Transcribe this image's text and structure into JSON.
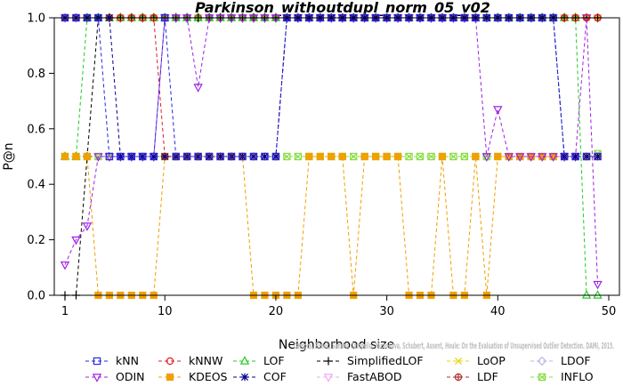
{
  "chart_data": {
    "type": "line",
    "title": "Parkinson_withoutdupl_norm_05_v02",
    "xlabel": "Neighborhood size",
    "ylabel": "P@n",
    "xlim": [
      1,
      50
    ],
    "ylim": [
      0,
      1
    ],
    "xticks": [
      1,
      10,
      20,
      30,
      40,
      50
    ],
    "xtick_labels": [
      "1",
      "10",
      "20",
      "30",
      "40",
      "50"
    ],
    "yticks": [
      0,
      0.2,
      0.4,
      0.6,
      0.8,
      1.0
    ],
    "ytick_labels": [
      "0.0",
      "0.2",
      "0.4",
      "0.6",
      "0.8",
      "1.0"
    ],
    "grid": false,
    "legend_position": "bottom",
    "credit": "Campos, Zimek, Sander, Campello, Micenkova, Schubert, Assent, Houle: On the Evaluation of Unsupervised Outlier Detection. DAMI, 2015.",
    "x": [
      1,
      2,
      3,
      4,
      5,
      6,
      7,
      8,
      9,
      10,
      11,
      12,
      13,
      14,
      15,
      16,
      17,
      18,
      19,
      20,
      21,
      22,
      23,
      24,
      25,
      26,
      27,
      28,
      29,
      30,
      31,
      32,
      33,
      34,
      35,
      36,
      37,
      38,
      39,
      40,
      41,
      42,
      43,
      44,
      45,
      46,
      47,
      48,
      49
    ],
    "series": [
      {
        "name": "kNN",
        "color": "#2626e6",
        "marker": "square",
        "values": [
          1,
          1,
          1,
          1,
          0.5,
          0.5,
          0.5,
          0.5,
          0.5,
          1,
          0.5,
          0.5,
          0.5,
          0.5,
          0.5,
          0.5,
          0.5,
          0.5,
          0.5,
          0.5,
          1,
          1,
          1,
          1,
          1,
          1,
          1,
          1,
          1,
          1,
          1,
          1,
          1,
          1,
          1,
          1,
          1,
          1,
          1,
          1,
          1,
          1,
          1,
          1,
          1,
          0.5,
          0.5,
          0.5,
          0.5
        ]
      },
      {
        "name": "kNNW",
        "color": "#e02020",
        "marker": "circle",
        "values": [
          1,
          1,
          1,
          1,
          1,
          1,
          1,
          1,
          1,
          0.5,
          0.5,
          0.5,
          0.5,
          0.5,
          0.5,
          0.5,
          0.5,
          0.5,
          0.5,
          0.5,
          1,
          1,
          1,
          1,
          1,
          1,
          1,
          1,
          1,
          1,
          1,
          1,
          1,
          1,
          1,
          1,
          1,
          1,
          1,
          1,
          1,
          1,
          1,
          1,
          1,
          1,
          1,
          1,
          1
        ]
      },
      {
        "name": "LOF",
        "color": "#22cc22",
        "marker": "triangle",
        "values": [
          0.5,
          0.5,
          1,
          1,
          1,
          1,
          1,
          1,
          1,
          1,
          1,
          1,
          1,
          1,
          1,
          1,
          1,
          1,
          1,
          1,
          1,
          1,
          1,
          1,
          1,
          1,
          1,
          1,
          1,
          1,
          1,
          1,
          1,
          1,
          1,
          1,
          1,
          1,
          1,
          1,
          1,
          1,
          1,
          1,
          1,
          1,
          1,
          0,
          0
        ]
      },
      {
        "name": "SimplifiedLOF",
        "color": "#000000",
        "marker": "plus",
        "values": [
          0,
          0,
          0.5,
          1,
          1,
          1,
          1,
          1,
          1,
          1,
          1,
          1,
          1,
          1,
          1,
          1,
          1,
          1,
          1,
          1,
          1,
          1,
          1,
          1,
          1,
          1,
          1,
          1,
          1,
          1,
          1,
          1,
          1,
          1,
          1,
          1,
          1,
          1,
          1,
          1,
          1,
          1,
          1,
          1,
          1,
          1,
          1,
          1,
          1
        ]
      },
      {
        "name": "LoOP",
        "color": "#e6d600",
        "marker": "x",
        "values": [
          1,
          1,
          1,
          1,
          1,
          1,
          1,
          1,
          1,
          1,
          1,
          1,
          1,
          1,
          1,
          1,
          1,
          1,
          1,
          1,
          1,
          1,
          1,
          1,
          1,
          1,
          1,
          1,
          1,
          1,
          1,
          1,
          1,
          1,
          1,
          1,
          1,
          1,
          1,
          1,
          1,
          1,
          1,
          1,
          1,
          1,
          1,
          1,
          1
        ]
      },
      {
        "name": "LDOF",
        "color": "#b8b8e6",
        "marker": "diamond",
        "values": [
          1,
          1,
          1,
          1,
          1,
          1,
          1,
          1,
          1,
          1,
          1,
          1,
          1,
          1,
          1,
          1,
          1,
          1,
          1,
          1,
          1,
          1,
          1,
          1,
          1,
          1,
          1,
          1,
          1,
          1,
          1,
          1,
          1,
          1,
          1,
          1,
          1,
          1,
          1,
          1,
          1,
          1,
          1,
          1,
          1,
          1,
          1,
          1,
          1
        ]
      },
      {
        "name": "ODIN",
        "color": "#a020e6",
        "marker": "triangle-down",
        "values": [
          0.11,
          0.2,
          0.25,
          0.5,
          0.5,
          0.5,
          0.5,
          0.5,
          0.5,
          1,
          1,
          1,
          0.75,
          1,
          1,
          1,
          1,
          1,
          1,
          1,
          1,
          1,
          1,
          1,
          1,
          1,
          1,
          1,
          1,
          1,
          1,
          1,
          1,
          1,
          1,
          1,
          1,
          1,
          0.5,
          0.67,
          0.5,
          0.5,
          0.5,
          0.5,
          0.5,
          0.5,
          0.5,
          1,
          0.04
        ]
      },
      {
        "name": "KDEOS",
        "color": "#f0a000",
        "marker": "square-filled",
        "values": [
          0.5,
          0.5,
          0.5,
          0,
          0,
          0,
          0,
          0,
          0,
          0.5,
          0.5,
          0.5,
          0.5,
          0.5,
          0.5,
          0.5,
          0.5,
          0,
          0,
          0,
          0,
          0,
          0.5,
          0.5,
          0.5,
          0.5,
          0,
          0.5,
          0.5,
          0.5,
          0.5,
          0,
          0,
          0,
          0.5,
          0,
          0,
          0.5,
          0,
          0.5,
          0.5,
          0.5,
          0.5,
          0.5,
          0.5,
          0.5,
          0.5,
          0.5,
          0.5
        ]
      },
      {
        "name": "COF",
        "color": "#00008b",
        "marker": "asterisk",
        "values": [
          1,
          1,
          1,
          1,
          1,
          0.5,
          0.5,
          0.5,
          0.5,
          0.5,
          0.5,
          0.5,
          0.5,
          0.5,
          0.5,
          0.5,
          0.5,
          0.5,
          0.5,
          0.5,
          1,
          1,
          1,
          1,
          1,
          1,
          1,
          1,
          1,
          1,
          1,
          1,
          1,
          1,
          1,
          1,
          1,
          1,
          1,
          1,
          1,
          1,
          1,
          1,
          1,
          0.5,
          0.5,
          0.5,
          0.5
        ]
      },
      {
        "name": "FastABOD",
        "color": "#f0a8f0",
        "marker": "triangle-down-open",
        "values": [
          1,
          1,
          1,
          1,
          1,
          1,
          1,
          1,
          1,
          1,
          1,
          1,
          1,
          1,
          1,
          1,
          1,
          1,
          1,
          1,
          1,
          1,
          1,
          1,
          1,
          1,
          1,
          1,
          1,
          1,
          1,
          1,
          1,
          1,
          1,
          1,
          1,
          1,
          1,
          1,
          1,
          1,
          1,
          1,
          1,
          1,
          1,
          1,
          1
        ]
      },
      {
        "name": "LDF",
        "color": "#b03030",
        "marker": "circle-cross",
        "values": [
          1,
          1,
          1,
          1,
          1,
          1,
          1,
          1,
          1,
          1,
          1,
          1,
          1,
          1,
          1,
          1,
          1,
          1,
          1,
          1,
          1,
          1,
          1,
          1,
          1,
          1,
          1,
          1,
          1,
          1,
          1,
          1,
          1,
          1,
          1,
          1,
          1,
          1,
          1,
          1,
          1,
          1,
          1,
          1,
          1,
          1,
          1,
          1,
          1
        ]
      },
      {
        "name": "INFLO",
        "color": "#88dd44",
        "marker": "square-x",
        "values": [
          0.5,
          0.5,
          0.5,
          0.5,
          0.5,
          0.5,
          0.5,
          0.5,
          0.5,
          0.5,
          0.5,
          0.5,
          0.5,
          0.5,
          0.5,
          0.5,
          0.5,
          0.5,
          0.5,
          0.5,
          0.5,
          0.5,
          0.5,
          0.5,
          0.5,
          0.5,
          0.5,
          0.5,
          0.5,
          0.5,
          0.5,
          0.5,
          0.5,
          0.5,
          0.5,
          0.5,
          0.5,
          0.5,
          0.5,
          0.5,
          0.5,
          0.5,
          0.5,
          0.5,
          0.5,
          0.5,
          0.5,
          0.5,
          0.51
        ]
      }
    ]
  }
}
